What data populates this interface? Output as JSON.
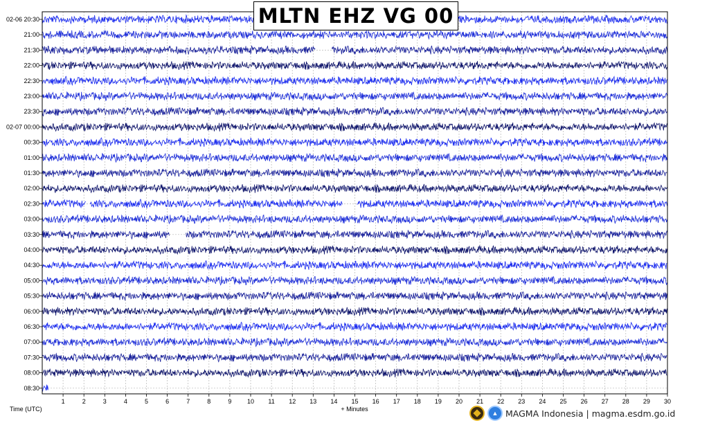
{
  "chart_data": {
    "type": "line",
    "title": "MLTN EHZ VG 00",
    "xlabel": "+ Minutes",
    "ylabel": "Time (UTC)",
    "xlim": [
      0,
      30
    ],
    "x_ticks": [
      1,
      2,
      3,
      4,
      5,
      6,
      7,
      8,
      9,
      10,
      11,
      12,
      13,
      14,
      15,
      16,
      17,
      18,
      19,
      20,
      21,
      22,
      23,
      24,
      25,
      26,
      27,
      28,
      29,
      30
    ],
    "grid": true,
    "rows": [
      {
        "label": "02-06 20:30",
        "color": "#1a2bf0",
        "gaps": [],
        "end": 30
      },
      {
        "label": "21:00",
        "color": "#1a2bd9",
        "gaps": [],
        "end": 30
      },
      {
        "label": "21:30",
        "color": "#161e9a",
        "gaps": [
          [
            13.1,
            13.9
          ]
        ],
        "end": 30
      },
      {
        "label": "22:00",
        "color": "#0c126a",
        "gaps": [],
        "end": 30
      },
      {
        "label": "22:30",
        "color": "#1a2bf0",
        "gaps": [],
        "end": 30
      },
      {
        "label": "23:00",
        "color": "#1a2bd9",
        "gaps": [],
        "end": 30
      },
      {
        "label": "23:30",
        "color": "#161e9a",
        "gaps": [],
        "end": 30
      },
      {
        "label": "02-07 00:00",
        "color": "#0c126a",
        "gaps": [],
        "end": 30
      },
      {
        "label": "00:30",
        "color": "#1a2bf0",
        "gaps": [],
        "end": 30
      },
      {
        "label": "01:00",
        "color": "#1a2bd9",
        "gaps": [],
        "end": 30
      },
      {
        "label": "01:30",
        "color": "#161e9a",
        "gaps": [],
        "end": 30
      },
      {
        "label": "02:00",
        "color": "#0c126a",
        "gaps": [],
        "end": 30
      },
      {
        "label": "02:30",
        "color": "#1a2bf0",
        "gaps": [
          [
            2.1,
            2.3
          ],
          [
            14.4,
            15.1
          ]
        ],
        "end": 30
      },
      {
        "label": "03:00",
        "color": "#1a2bd9",
        "gaps": [],
        "end": 30
      },
      {
        "label": "03:30",
        "color": "#161e9a",
        "gaps": [
          [
            6.1,
            6.9
          ]
        ],
        "end": 30
      },
      {
        "label": "04:00",
        "color": "#0c126a",
        "gaps": [],
        "end": 30
      },
      {
        "label": "04:30",
        "color": "#1a2bf0",
        "gaps": [],
        "end": 30
      },
      {
        "label": "05:00",
        "color": "#1a2bd9",
        "gaps": [],
        "end": 30
      },
      {
        "label": "05:30",
        "color": "#161e9a",
        "gaps": [],
        "end": 30
      },
      {
        "label": "06:00",
        "color": "#0c126a",
        "gaps": [],
        "end": 30
      },
      {
        "label": "06:30",
        "color": "#1a2bf0",
        "gaps": [],
        "end": 30
      },
      {
        "label": "07:00",
        "color": "#1a2bd9",
        "gaps": [],
        "end": 30
      },
      {
        "label": "07:30",
        "color": "#161e9a",
        "gaps": [],
        "end": 30
      },
      {
        "label": "08:00",
        "color": "#0c126a",
        "gaps": [],
        "end": 30
      },
      {
        "label": "08:30",
        "color": "#1a2bf0",
        "gaps": [],
        "end": 0.3
      }
    ]
  },
  "footer": {
    "text": "MAGMA Indonesia | magma.esdm.go.id",
    "logos": [
      "esdm-logo",
      "magma-logo"
    ]
  }
}
